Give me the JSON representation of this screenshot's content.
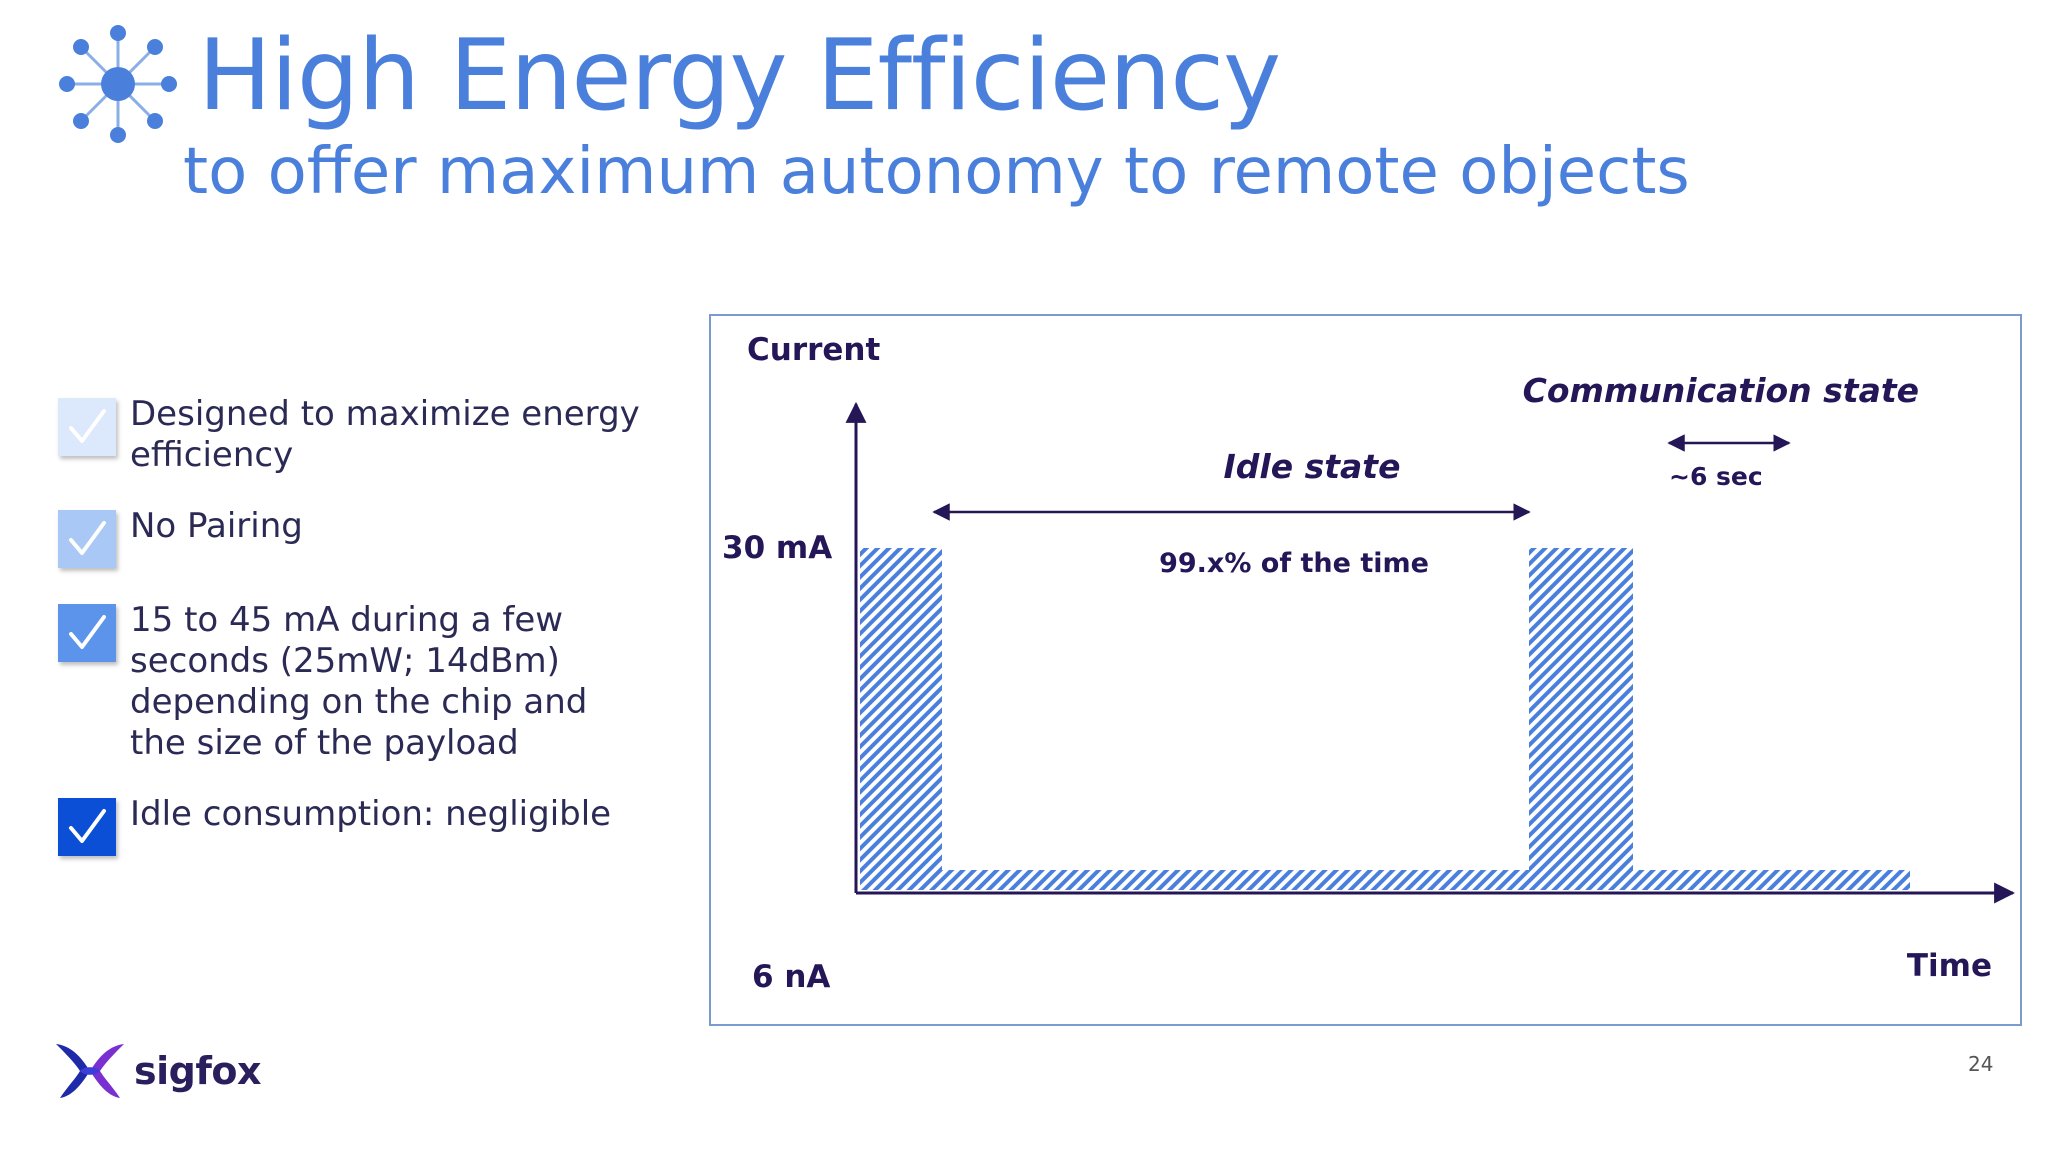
{
  "header": {
    "title": "High Energy Efficiency",
    "subtitle": "to offer maximum autonomy to remote objects",
    "icon": "network-node-icon"
  },
  "bullets": [
    {
      "text": "Designed to maximize energy efficiency",
      "check_color": "#dce8fb",
      "check_icon": "checkmark-icon"
    },
    {
      "text": "No Pairing",
      "check_color": "#aac8f5",
      "check_icon": "checkmark-icon"
    },
    {
      "text": "15 to 45 mA during a few seconds (25mW; 14dBm) depending on the chip and the size of the payload",
      "check_color": "#5b94ea",
      "check_icon": "checkmark-icon"
    },
    {
      "text": "Idle consumption: negligible",
      "check_color": "#0b4fd6",
      "check_icon": "checkmark-icon"
    }
  ],
  "diagram": {
    "y_axis_label": "Current",
    "x_axis_label": "Time",
    "y_high_label": "30 mA",
    "y_low_label": "6 nA",
    "idle_label": "Idle state",
    "idle_duration": "99.x% of the time",
    "comm_label": "Communication state",
    "comm_duration": "~6 sec",
    "fill_color": "#4a80dc",
    "ink_color": "#241657"
  },
  "footer": {
    "logo_text": "sigfox",
    "page_number": "24"
  }
}
